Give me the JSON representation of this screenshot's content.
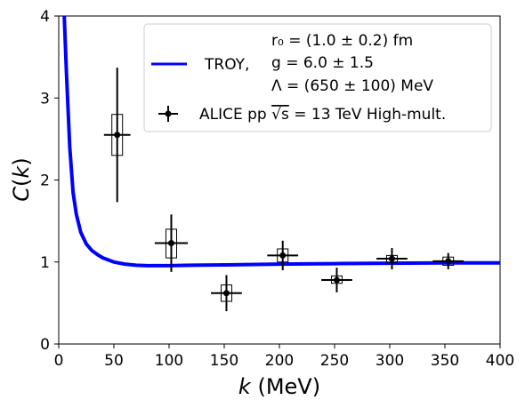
{
  "chart_data": {
    "type": "line",
    "xlabel": "k (MeV)",
    "ylabel": "C(k)",
    "xlim": [
      0,
      400
    ],
    "ylim": [
      0,
      4
    ],
    "x_ticks": [
      0,
      50,
      100,
      150,
      200,
      250,
      300,
      350,
      400
    ],
    "y_ticks": [
      0,
      1,
      2,
      3,
      4
    ],
    "grid": false,
    "legend_position": "top-right",
    "legend": {
      "line_label": "TROY,",
      "params": [
        "r₀ = (1.0 ± 0.2) fm",
        "g = 6.0 ± 1.5",
        "Λ = (650 ± 100) MeV"
      ],
      "points_label_pre": "ALICE pp ",
      "points_label_sqrt": "√s",
      "points_label_post": " = 13 TeV High-mult."
    },
    "series": [
      {
        "name": "TROY",
        "color": "#0000ff",
        "x": [
          5,
          7,
          10,
          13,
          16,
          20,
          25,
          30,
          35,
          40,
          50,
          60,
          70,
          80,
          90,
          100,
          120,
          150,
          200,
          250,
          300,
          350,
          400
        ],
        "y": [
          4.0,
          3.3,
          2.4,
          1.85,
          1.58,
          1.36,
          1.22,
          1.14,
          1.09,
          1.05,
          1.0,
          0.975,
          0.96,
          0.955,
          0.955,
          0.955,
          0.96,
          0.965,
          0.975,
          0.98,
          0.985,
          0.99,
          0.99
        ]
      },
      {
        "name": "ALICE pp √s = 13 TeV High-mult.",
        "color": "#000000",
        "x": [
          53,
          102,
          152,
          203,
          252,
          302,
          353
        ],
        "y": [
          2.55,
          1.23,
          0.62,
          1.08,
          0.78,
          1.04,
          1.01
        ],
        "yerr": [
          0.82,
          0.35,
          0.22,
          0.18,
          0.15,
          0.13,
          0.1
        ],
        "xerr": [
          12,
          15,
          14,
          14,
          14,
          14,
          14
        ],
        "syst_lo": [
          2.3,
          1.05,
          0.52,
          1.0,
          0.74,
          0.99,
          0.96
        ],
        "syst_hi": [
          2.8,
          1.4,
          0.72,
          1.16,
          0.83,
          1.08,
          1.06
        ]
      }
    ]
  }
}
